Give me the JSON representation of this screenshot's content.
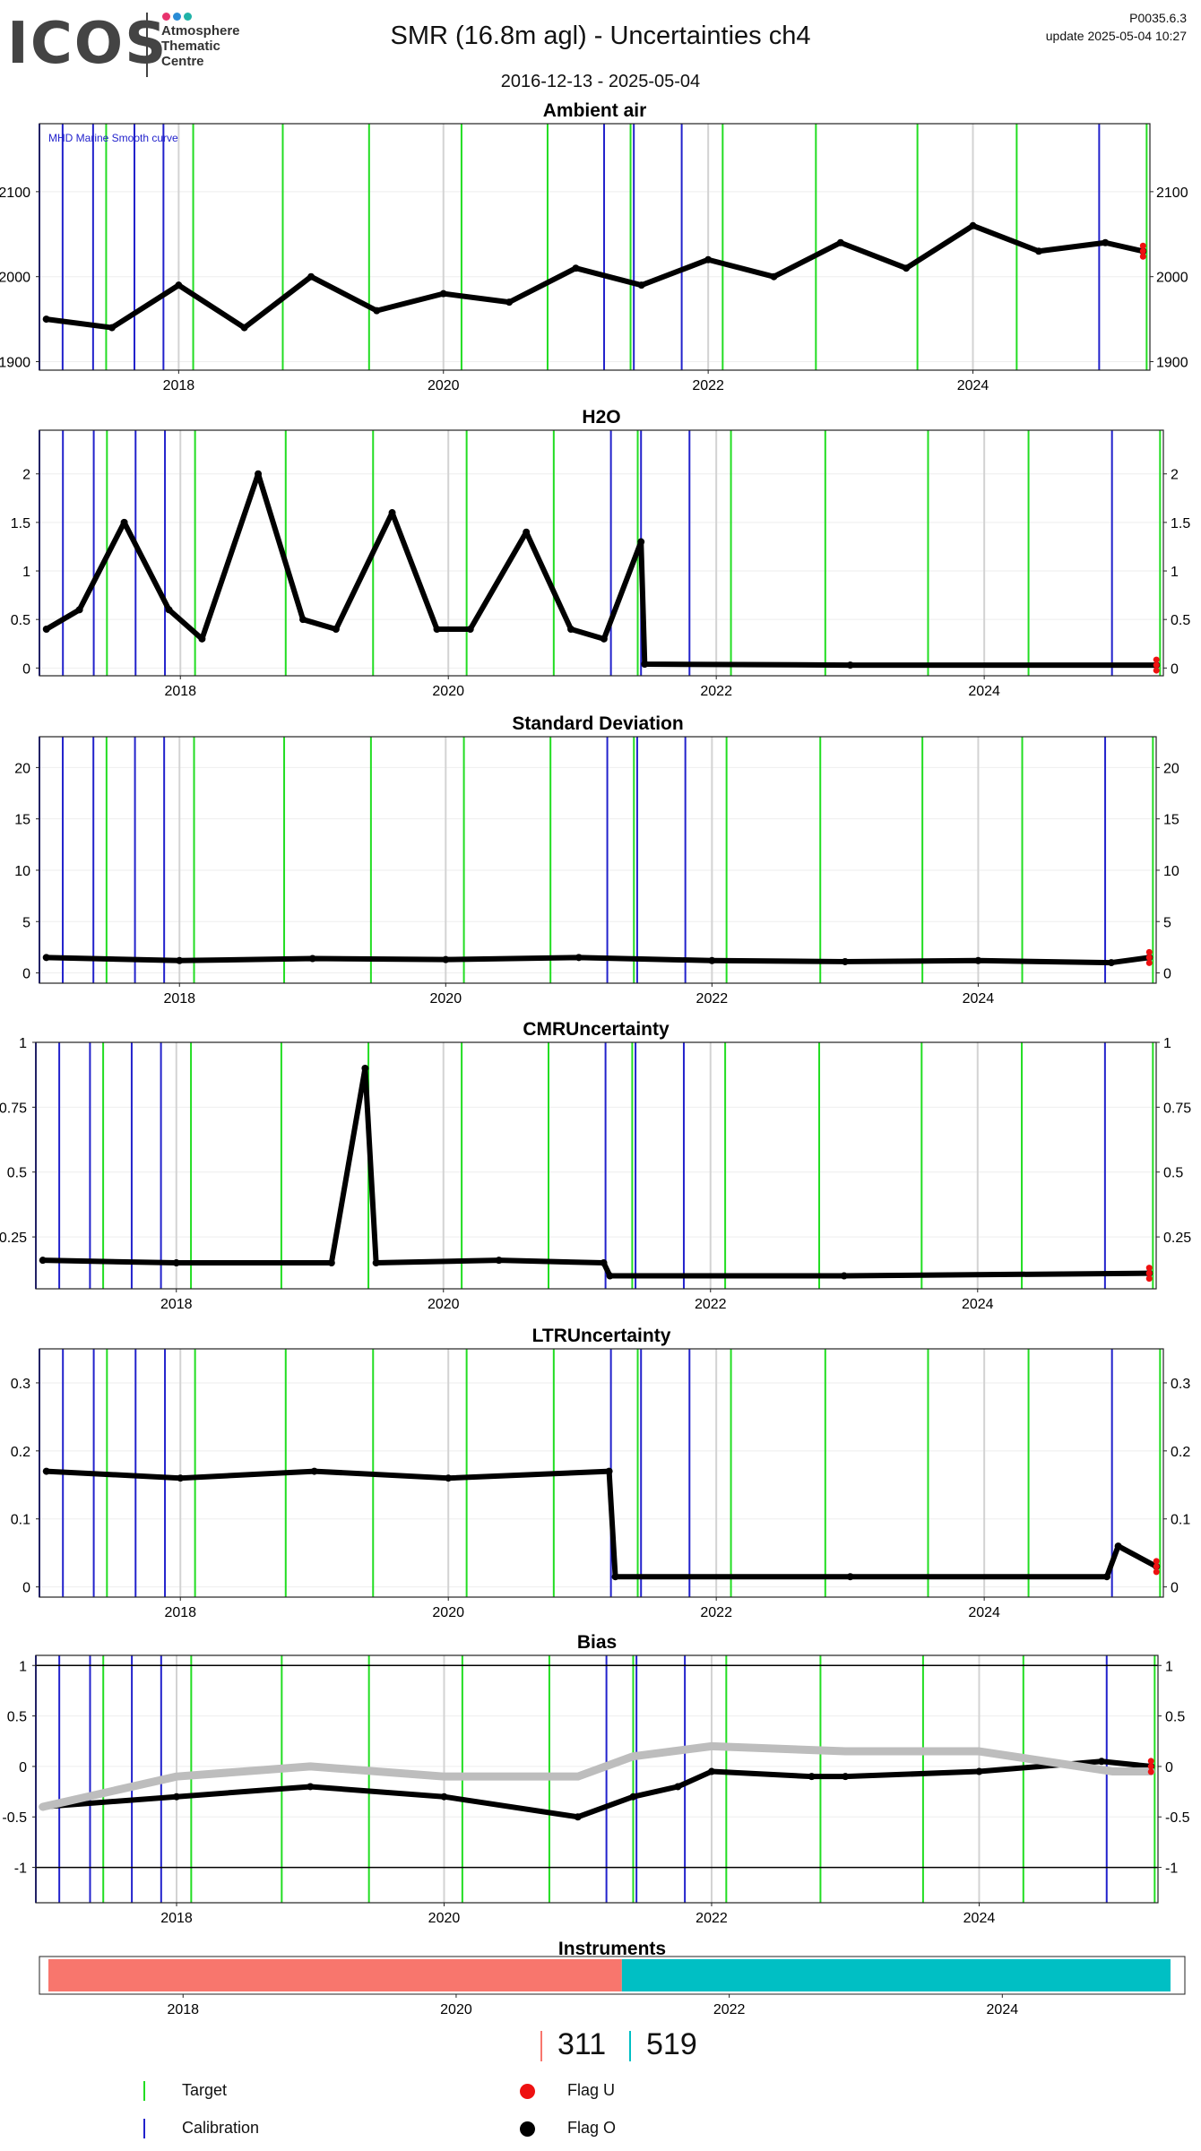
{
  "header": {
    "logo_text": "ICOS",
    "logo_sub": [
      "Atmosphere",
      "Thematic",
      "Centre"
    ],
    "logo_dot_colors": [
      "#e8336d",
      "#2a8cd6",
      "#20b3a8"
    ],
    "title": "SMR  (16.8m agl) - Uncertainties ch4",
    "date_range": "2016-12-13 - 2025-05-04",
    "version": "P0035.6.3",
    "update": "update  2025-05-04 10:27"
  },
  "colors": {
    "target": "#22dd22",
    "calibration": "#2222cc",
    "flag_u": "#ee1111",
    "flag_o": "#000000",
    "smooth": "#bdbdbd",
    "instrument_1": "#f8766d",
    "instrument_2": "#00bfc4"
  },
  "chart_data": {
    "time_range": [
      "2016-12-13",
      "2025-05-04"
    ],
    "calibration_dates": [
      "2016-12-13",
      "2017-02-15",
      "2017-05-10",
      "2017-09-01",
      "2017-11-20",
      "2021-03-20",
      "2021-06-10",
      "2021-10-20",
      "2024-12-15"
    ],
    "target_dates": [
      "2017-06-15",
      "2018-02-10",
      "2018-10-15",
      "2019-06-10",
      "2020-02-20",
      "2020-10-15",
      "2021-06-01",
      "2022-02-10",
      "2022-10-25",
      "2023-08-01",
      "2024-05-01",
      "2025-04-25"
    ],
    "gray_lines": [
      "2018-01-01",
      "2020-01-01",
      "2022-01-01",
      "2024-01-01"
    ],
    "panels": [
      {
        "title": "Ambient air",
        "type": "scatter",
        "ylim": [
          1890,
          2180
        ],
        "yticks": [
          1900,
          2000,
          2100
        ],
        "annotation": "MHD Marine Smooth curve",
        "series": [
          {
            "x": [
              "2017-01-01",
              "2017-07-01",
              "2018-01-01",
              "2018-07-01",
              "2019-01-01",
              "2019-07-01",
              "2020-01-01",
              "2020-07-01",
              "2021-01-01",
              "2021-07-01",
              "2022-01-01",
              "2022-07-01",
              "2023-01-01",
              "2023-07-01",
              "2024-01-01",
              "2024-07-01",
              "2025-01-01",
              "2025-04-15"
            ],
            "y": [
              1950,
              1940,
              1990,
              1940,
              2000,
              1960,
              1980,
              1970,
              2010,
              1990,
              2020,
              2000,
              2040,
              2010,
              2060,
              2030,
              2040,
              2030
            ]
          }
        ]
      },
      {
        "title": "H2O",
        "type": "scatter",
        "ylim": [
          -0.08,
          2.45
        ],
        "yticks": [
          0.0,
          0.5,
          1.0,
          1.5,
          2.0
        ],
        "series": [
          {
            "x": [
              "2017-01-01",
              "2017-04-01",
              "2017-08-01",
              "2017-12-01",
              "2018-03-01",
              "2018-08-01",
              "2018-12-01",
              "2019-03-01",
              "2019-08-01",
              "2019-12-01",
              "2020-03-01",
              "2020-08-01",
              "2020-12-01",
              "2021-03-01",
              "2021-06-10",
              "2021-06-20",
              "2023-01-01",
              "2025-04-15"
            ],
            "y": [
              0.4,
              0.6,
              1.5,
              0.6,
              0.3,
              2.0,
              0.5,
              0.4,
              1.6,
              0.4,
              0.4,
              1.4,
              0.4,
              0.3,
              1.3,
              0.04,
              0.03,
              0.03
            ]
          }
        ]
      },
      {
        "title": "Standard Deviation",
        "type": "scatter",
        "ylim": [
          -1,
          23
        ],
        "yticks": [
          0,
          5,
          10,
          15,
          20
        ],
        "series": [
          {
            "x": [
              "2017-01-01",
              "2018-01-01",
              "2019-01-01",
              "2020-01-01",
              "2021-01-01",
              "2022-01-01",
              "2023-01-01",
              "2024-01-01",
              "2025-01-01",
              "2025-04-15"
            ],
            "y": [
              1.5,
              1.2,
              1.4,
              1.3,
              1.5,
              1.2,
              1.1,
              1.2,
              1.0,
              1.5
            ]
          }
        ]
      },
      {
        "title": "CMRUncertainty",
        "type": "scatter",
        "ylim": [
          0.05,
          1.0
        ],
        "yticks": [
          0.25,
          0.5,
          0.75,
          1.0
        ],
        "series": [
          {
            "x": [
              "2017-01-01",
              "2018-01-01",
              "2019-03-01",
              "2019-06-01",
              "2019-07-01",
              "2020-06-01",
              "2021-03-15",
              "2021-04-01",
              "2023-01-01",
              "2025-04-15"
            ],
            "y": [
              0.16,
              0.15,
              0.15,
              0.9,
              0.15,
              0.16,
              0.15,
              0.1,
              0.1,
              0.11
            ]
          }
        ]
      },
      {
        "title": "LTRUncertainty",
        "type": "scatter",
        "ylim": [
          -0.015,
          0.35
        ],
        "yticks": [
          0.0,
          0.1,
          0.2,
          0.3
        ],
        "series": [
          {
            "x": [
              "2017-01-01",
              "2018-01-01",
              "2019-01-01",
              "2020-01-01",
              "2021-03-15",
              "2021-04-01",
              "2023-01-01",
              "2024-12-01",
              "2025-01-01",
              "2025-04-15"
            ],
            "y": [
              0.17,
              0.16,
              0.17,
              0.16,
              0.17,
              0.015,
              0.015,
              0.015,
              0.06,
              0.03
            ]
          }
        ]
      },
      {
        "title": "Bias",
        "type": "scatter",
        "ylim": [
          -1.35,
          1.1
        ],
        "yticks": [
          -1.0,
          -0.5,
          0.0,
          0.5,
          1.0
        ],
        "reference_lines": [
          -1.0,
          1.0
        ],
        "series": [
          {
            "x": [
              "2017-01-01",
              "2018-01-01",
              "2019-01-01",
              "2020-01-01",
              "2021-01-01",
              "2021-06-01",
              "2021-10-01",
              "2022-01-01",
              "2022-10-01",
              "2023-01-01",
              "2024-01-01",
              "2024-12-01",
              "2025-04-15"
            ],
            "y": [
              -0.4,
              -0.3,
              -0.2,
              -0.3,
              -0.5,
              -0.3,
              -0.2,
              -0.05,
              -0.1,
              -0.1,
              -0.05,
              0.05,
              0.0
            ]
          },
          {
            "x": [
              "2017-01-01",
              "2018-01-01",
              "2019-01-01",
              "2020-01-01",
              "2021-01-01",
              "2021-06-01",
              "2022-01-01",
              "2023-01-01",
              "2024-01-01",
              "2025-01-01",
              "2025-04-15"
            ],
            "y": [
              -0.4,
              -0.1,
              0.0,
              -0.1,
              -0.1,
              0.1,
              0.2,
              0.15,
              0.15,
              -0.05,
              -0.05
            ]
          }
        ]
      }
    ],
    "instruments": {
      "title": "Instruments",
      "segments": [
        {
          "label": "311",
          "start": "2016-12-13",
          "end": "2021-03-20"
        },
        {
          "label": "519",
          "start": "2021-03-20",
          "end": "2025-05-04"
        }
      ],
      "xticks": [
        "2018",
        "2020",
        "2022",
        "2024"
      ]
    },
    "xticks": [
      "2018",
      "2020",
      "2022",
      "2024"
    ],
    "legend": [
      {
        "label": "Target",
        "symbol": "line",
        "color_key": "target"
      },
      {
        "label": "Calibration",
        "symbol": "line",
        "color_key": "calibration"
      },
      {
        "label": "Flag U",
        "symbol": "dot",
        "color_key": "flag_u"
      },
      {
        "label": "Flag O",
        "symbol": "dot",
        "color_key": "flag_o"
      }
    ]
  }
}
